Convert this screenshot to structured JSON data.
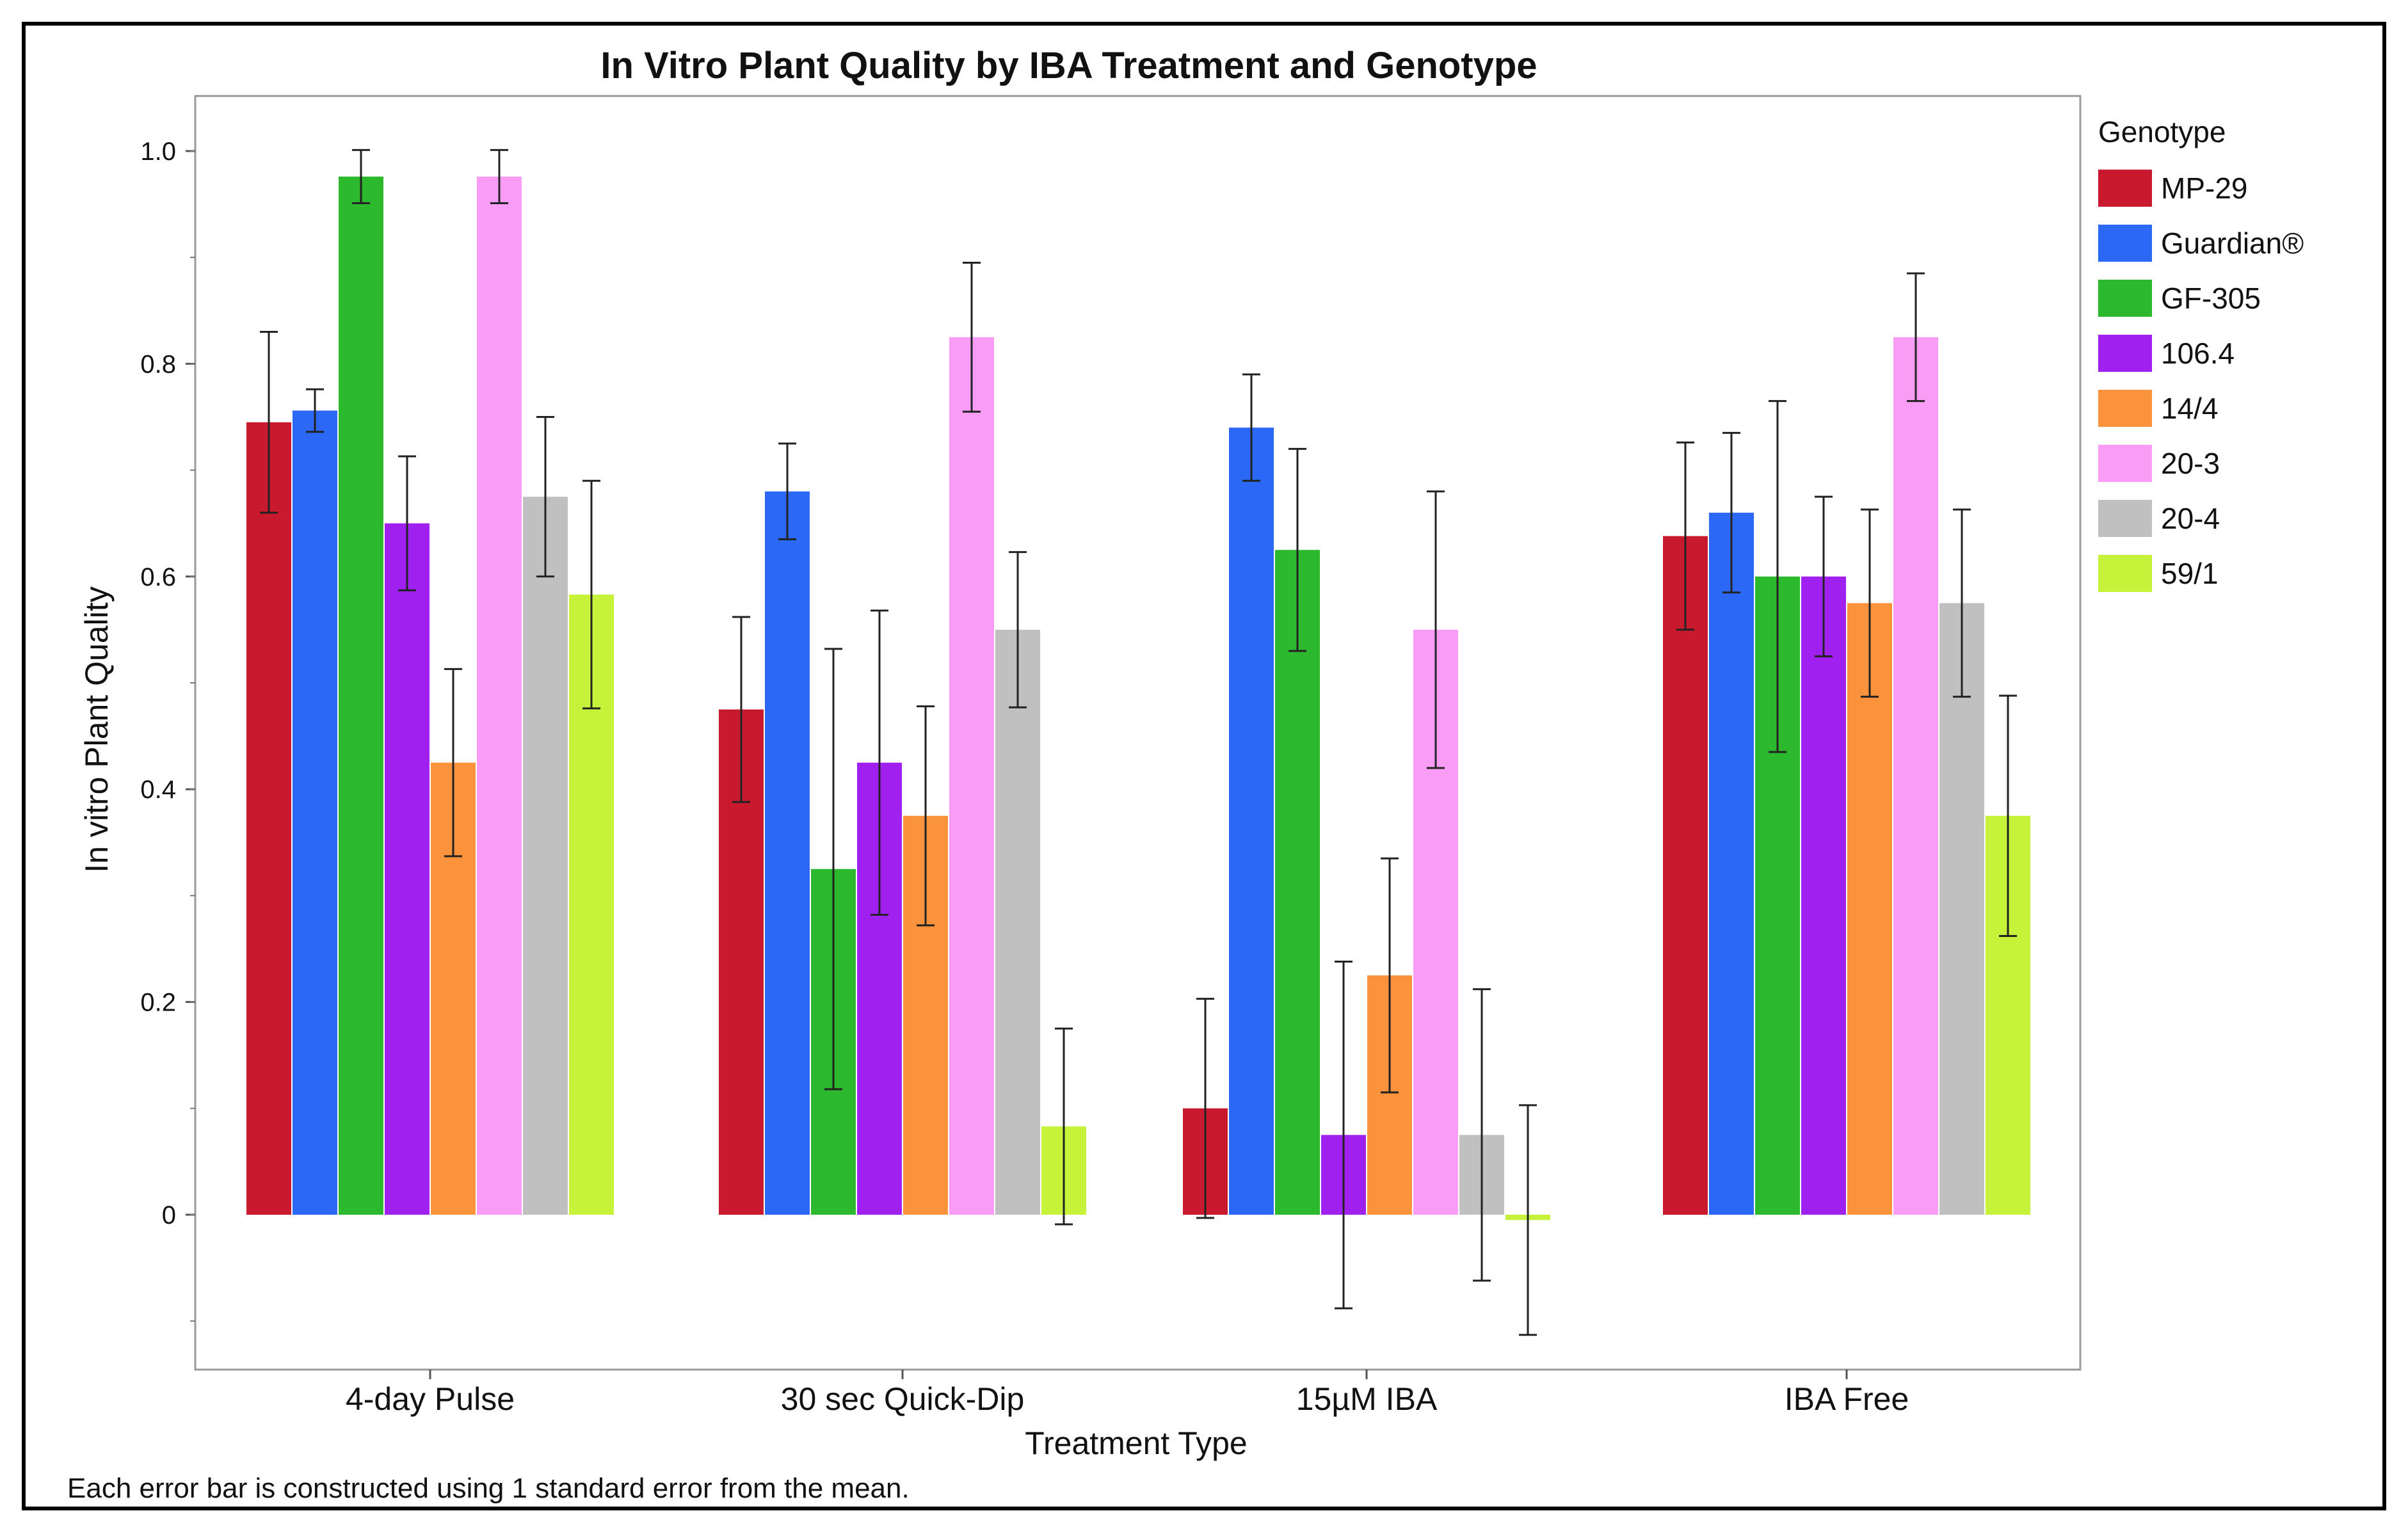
{
  "chart_data": {
    "type": "bar",
    "title": "In Vitro Plant Quality by IBA Treatment and Genotype",
    "xlabel": "Treatment Type",
    "ylabel": "In vitro Plant Quality",
    "ylim": [
      -0.15,
      1.05
    ],
    "yticks": [
      0,
      0.2,
      0.4,
      0.6,
      0.8,
      1.0
    ],
    "ytick_labels": [
      "0",
      "0.2",
      "0.4",
      "0.6",
      "0.8",
      "1.0"
    ],
    "legend_title": "Genotype",
    "legend_position": "right",
    "footnote": "Each error bar is constructed using 1 standard error from the mean.",
    "categories": [
      "4-day Pulse",
      "30 sec Quick-Dip",
      "15µM IBA",
      "IBA Free"
    ],
    "series": [
      {
        "name": "MP-29",
        "color": "#c8192f",
        "values": [
          0.745,
          0.475,
          0.1,
          0.638
        ],
        "errors": [
          0.085,
          0.087,
          0.103,
          0.088
        ]
      },
      {
        "name": "Guardian®",
        "color": "#2b68f5",
        "values": [
          0.756,
          0.68,
          0.74,
          0.66
        ],
        "errors": [
          0.02,
          0.045,
          0.05,
          0.075
        ]
      },
      {
        "name": "GF-305",
        "color": "#2db92d",
        "values": [
          0.976,
          0.325,
          0.625,
          0.6
        ],
        "errors": [
          0.025,
          0.207,
          0.095,
          0.165
        ]
      },
      {
        "name": "106.4",
        "color": "#a020f0",
        "values": [
          0.65,
          0.425,
          0.075,
          0.6
        ],
        "errors": [
          0.063,
          0.143,
          0.163,
          0.075
        ]
      },
      {
        "name": "14/4",
        "color": "#fb923c",
        "values": [
          0.425,
          0.375,
          0.225,
          0.575
        ],
        "errors": [
          0.088,
          0.103,
          0.11,
          0.088
        ]
      },
      {
        "name": "20-3",
        "color": "#f99cf5",
        "values": [
          0.976,
          0.825,
          0.55,
          0.825
        ],
        "errors": [
          0.025,
          0.07,
          0.13,
          0.06
        ]
      },
      {
        "name": "20-4",
        "color": "#c0c0c0",
        "values": [
          0.675,
          0.55,
          0.075,
          0.575
        ],
        "errors": [
          0.075,
          0.073,
          0.137,
          0.088
        ]
      },
      {
        "name": "59/1",
        "color": "#c6f23a",
        "values": [
          0.583,
          0.083,
          -0.005,
          0.375
        ],
        "errors": [
          0.107,
          0.092,
          0.108,
          0.113
        ]
      }
    ]
  }
}
